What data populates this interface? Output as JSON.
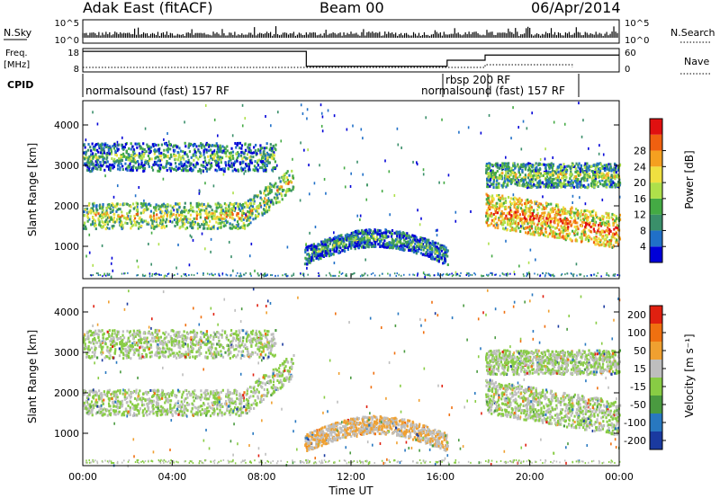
{
  "header": {
    "title": "Adak East (fitACF)",
    "beam": "Beam 00",
    "date": "06/Apr/2014"
  },
  "nsky_panel": {
    "left_label": "N.Sky",
    "right_label": "N.Search",
    "left_ticks": [
      "10^5",
      "10^0"
    ],
    "right_ticks": [
      "10^5",
      "10^0"
    ]
  },
  "freq_panel": {
    "left_label_1": "Freq.",
    "left_label_2": "[MHz]",
    "right_label": "Nave",
    "left_ticks": [
      "18",
      "8"
    ],
    "right_ticks": [
      "60",
      "0"
    ],
    "steps": [
      {
        "t": 0.0,
        "mhz": 16.8
      },
      {
        "t": 10.0,
        "mhz": 10.4
      },
      {
        "t": 16.3,
        "mhz": 13.0
      },
      {
        "t": 18.0,
        "mhz": 15.2
      },
      {
        "t": 24.0,
        "mhz": 15.2
      }
    ]
  },
  "cpid_panel": {
    "label": "CPID",
    "segments": [
      {
        "start": 0.0,
        "end": 16.3,
        "text": "normalsound (fast) 157 RF"
      },
      {
        "start": 16.3,
        "end": 18.0,
        "text": "rbsp 200 RF"
      },
      {
        "start": 18.0,
        "end": 21.9,
        "text": "normalsound (fast) 157 RF"
      }
    ]
  },
  "chart_data": [
    {
      "type": "heatmap",
      "ylabel": "Slant Range [km]",
      "yticks": [
        "1000",
        "2000",
        "3000",
        "4000"
      ],
      "ylim": [
        200,
        4600
      ],
      "xlim": [
        0,
        24
      ],
      "colorbar": {
        "label": "Power [dB]",
        "ticks": [
          "4",
          "8",
          "12",
          "16",
          "20",
          "24",
          "28"
        ],
        "range": [
          0,
          30
        ],
        "colors": [
          "#0000d8",
          "#2070c8",
          "#3a8f6a",
          "#44aa44",
          "#aee04a",
          "#f0e040",
          "#f5a020",
          "#f06010",
          "#e01010"
        ]
      },
      "regions": [
        {
          "t0": 0.0,
          "t1": 9.4,
          "r_center": 1750,
          "r_halfwidth": 320,
          "level": 12,
          "note": "main"
        },
        {
          "t0": 0.0,
          "t1": 8.6,
          "r_center": 3200,
          "r_halfwidth": 350,
          "level": 6,
          "note": "upper"
        },
        {
          "t0": 9.9,
          "t1": 16.3,
          "r_center": 1000,
          "r_halfwidth": 220,
          "level": 5,
          "note": "mid"
        },
        {
          "t0": 18.0,
          "t1": 24.0,
          "r_center": 1500,
          "r_halfwidth": 420,
          "level": 18,
          "note": "late-main"
        },
        {
          "t0": 18.0,
          "t1": 24.0,
          "r_center": 2750,
          "r_halfwidth": 300,
          "level": 9,
          "note": "late-upper"
        }
      ]
    },
    {
      "type": "heatmap",
      "ylabel": "Slant Range [km]",
      "yticks": [
        "1000",
        "2000",
        "3000",
        "4000"
      ],
      "ylim": [
        200,
        4600
      ],
      "xlim": [
        0,
        24
      ],
      "xticks": [
        "00:00",
        "04:00",
        "08:00",
        "12:00",
        "16:00",
        "20:00",
        "00:00"
      ],
      "xlabel": "Time UT",
      "colorbar": {
        "label": "Velocity [m s⁻¹]",
        "ticks": [
          "200",
          "100",
          "50",
          "15",
          "-15",
          "-50",
          "-100",
          "-200"
        ],
        "range": [
          -250,
          250
        ],
        "colors": [
          "#1a3aa0",
          "#2878c0",
          "#4a9a40",
          "#88cc44",
          "#bebebe",
          "#f0a030",
          "#f07010",
          "#e02010"
        ]
      },
      "regions": [
        {
          "t0": 0.0,
          "t1": 9.4,
          "r_center": 1750,
          "r_halfwidth": 320,
          "level": 0,
          "note": "main"
        },
        {
          "t0": 0.0,
          "t1": 8.6,
          "r_center": 3200,
          "r_halfwidth": 350,
          "level": 0,
          "note": "upper"
        },
        {
          "t0": 9.9,
          "t1": 16.3,
          "r_center": 1000,
          "r_halfwidth": 220,
          "level": 60,
          "note": "mid"
        },
        {
          "t0": 18.0,
          "t1": 24.0,
          "r_center": 1500,
          "r_halfwidth": 420,
          "level": 0,
          "note": "late-main"
        },
        {
          "t0": 18.0,
          "t1": 24.0,
          "r_center": 2750,
          "r_halfwidth": 300,
          "level": 0,
          "note": "late-upper"
        }
      ]
    }
  ]
}
